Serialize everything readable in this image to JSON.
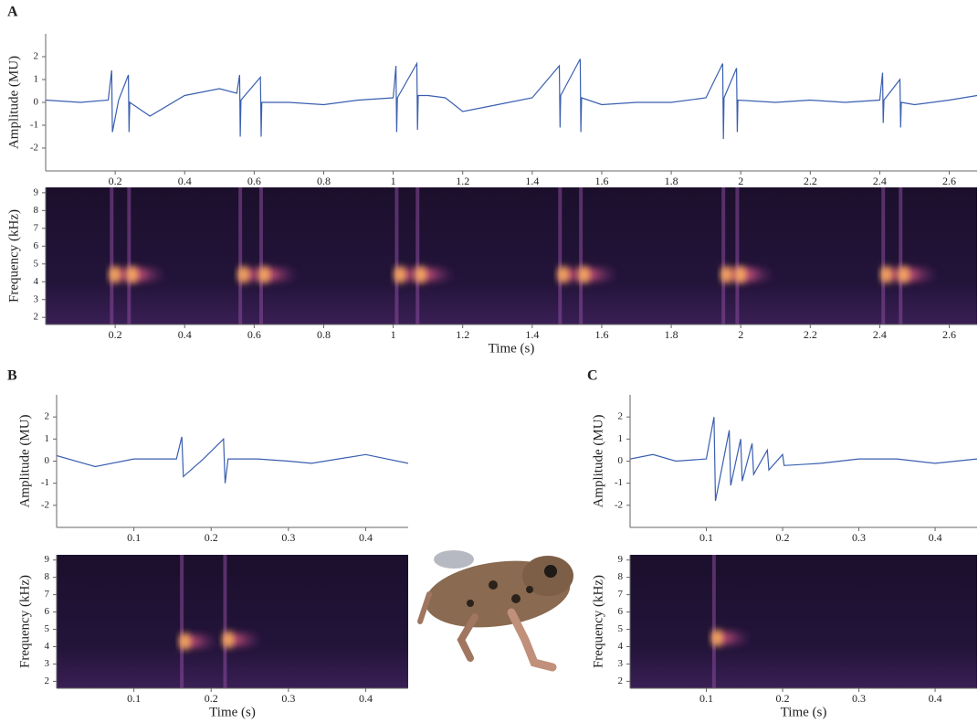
{
  "chart_data": [
    {
      "type": "line",
      "panel": "A",
      "ylabel": "Amplitude (MU)",
      "color": "#3a5fb0",
      "xlim": [
        0,
        2.68
      ],
      "ylim": [
        -3,
        3
      ],
      "xticks": [
        0.2,
        0.4,
        0.6,
        0.8,
        1.0,
        1.2,
        1.4,
        1.6,
        1.8,
        2.0,
        2.2,
        2.4,
        2.6
      ],
      "yticks": [
        -2,
        -1,
        0,
        1,
        2
      ],
      "x": [
        0,
        0.1,
        0.18,
        0.19,
        0.192,
        0.21,
        0.238,
        0.24,
        0.242,
        0.3,
        0.4,
        0.5,
        0.55,
        0.558,
        0.56,
        0.562,
        0.618,
        0.62,
        0.622,
        0.7,
        0.8,
        0.9,
        1.0,
        1.008,
        1.01,
        1.012,
        1.068,
        1.07,
        1.072,
        1.1,
        1.15,
        1.2,
        1.3,
        1.4,
        1.478,
        1.48,
        1.482,
        1.538,
        1.54,
        1.542,
        1.6,
        1.7,
        1.8,
        1.9,
        1.948,
        1.95,
        1.952,
        1.988,
        1.99,
        1.992,
        2.1,
        2.2,
        2.3,
        2.4,
        2.408,
        2.41,
        2.412,
        2.458,
        2.46,
        2.462,
        2.5,
        2.6,
        2.68
      ],
      "values": [
        0.1,
        0.0,
        0.1,
        1.4,
        -1.3,
        0.1,
        1.2,
        -1.3,
        0.0,
        -0.6,
        0.3,
        0.6,
        0.4,
        1.2,
        -1.5,
        0.1,
        1.1,
        -1.5,
        0.0,
        0.0,
        -0.1,
        0.1,
        0.2,
        1.6,
        -1.3,
        0.2,
        1.7,
        -1.2,
        0.3,
        0.3,
        0.2,
        -0.4,
        -0.1,
        0.2,
        1.6,
        -1.1,
        0.3,
        1.9,
        -1.3,
        0.2,
        -0.1,
        0.0,
        0.0,
        0.2,
        1.7,
        -1.6,
        0.2,
        1.5,
        -1.3,
        0.1,
        0.0,
        0.1,
        0.0,
        0.1,
        1.3,
        -0.9,
        0.1,
        1.0,
        -1.1,
        0.0,
        -0.1,
        0.1,
        0.3
      ]
    },
    {
      "type": "spectrogram",
      "ylabel": "Frequency (kHz)",
      "xlabel": "Time (s)",
      "xlim": [
        0,
        2.68
      ],
      "ylim": [
        1.6,
        9.3
      ],
      "xticks": [
        0.2,
        0.4,
        0.6,
        0.8,
        1.0,
        1.2,
        1.4,
        1.6,
        1.8,
        2.0,
        2.2,
        2.4,
        2.6
      ],
      "yticks": [
        2,
        3,
        4,
        5,
        6,
        7,
        8,
        9
      ],
      "x": [
        0.19,
        0.24,
        0.56,
        0.62,
        1.01,
        1.07,
        1.48,
        1.54,
        1.95,
        1.99,
        2.41,
        2.46
      ],
      "values": [
        4.4,
        4.4,
        4.4,
        4.4,
        4.4,
        4.4,
        4.4,
        4.4,
        4.4,
        4.4,
        4.4,
        4.4
      ]
    },
    {
      "type": "line",
      "panel": "B",
      "ylabel": "Amplitude (MU)",
      "color": "#3a5fb0",
      "xlim": [
        0,
        0.455
      ],
      "ylim": [
        -3,
        3
      ],
      "xticks": [
        0.1,
        0.2,
        0.3,
        0.4
      ],
      "yticks": [
        -2,
        -1,
        0,
        1,
        2
      ],
      "x": [
        0,
        0.05,
        0.1,
        0.155,
        0.162,
        0.164,
        0.19,
        0.216,
        0.218,
        0.222,
        0.26,
        0.3,
        0.33,
        0.4,
        0.455
      ],
      "values": [
        0.25,
        -0.25,
        0.1,
        0.1,
        1.1,
        -0.7,
        0.1,
        1.0,
        -1.0,
        0.1,
        0.1,
        0.0,
        -0.1,
        0.3,
        -0.1
      ]
    },
    {
      "type": "spectrogram",
      "ylabel": "Frequency (kHz)",
      "xlabel": "Time (s)",
      "xlim": [
        0,
        0.455
      ],
      "ylim": [
        1.6,
        9.3
      ],
      "xticks": [
        0.1,
        0.2,
        0.3,
        0.4
      ],
      "yticks": [
        2,
        3,
        4,
        5,
        6,
        7,
        8,
        9
      ],
      "x": [
        0.162,
        0.218
      ],
      "values": [
        4.3,
        4.4
      ]
    },
    {
      "type": "line",
      "panel": "C",
      "ylabel": "Amplitude (MU)",
      "color": "#3a5fb0",
      "xlim": [
        0,
        0.455
      ],
      "ylim": [
        -3,
        3
      ],
      "xticks": [
        0.1,
        0.2,
        0.3,
        0.4
      ],
      "yticks": [
        -2,
        -1,
        0,
        1,
        2
      ],
      "x": [
        0,
        0.03,
        0.06,
        0.1,
        0.11,
        0.112,
        0.13,
        0.132,
        0.145,
        0.147,
        0.16,
        0.162,
        0.18,
        0.182,
        0.2,
        0.202,
        0.25,
        0.3,
        0.35,
        0.4,
        0.455
      ],
      "values": [
        0.1,
        0.3,
        0.0,
        0.1,
        2.0,
        -1.8,
        1.4,
        -1.1,
        1.0,
        -0.9,
        0.8,
        -0.6,
        0.5,
        -0.4,
        0.3,
        -0.2,
        -0.1,
        0.1,
        0.1,
        -0.1,
        0.1
      ]
    },
    {
      "type": "spectrogram",
      "ylabel": "Frequency (kHz)",
      "xlabel": "Time (s)",
      "xlim": [
        0,
        0.455
      ],
      "ylim": [
        1.6,
        9.3
      ],
      "xticks": [
        0.1,
        0.2,
        0.3,
        0.4
      ],
      "yticks": [
        2,
        3,
        4,
        5,
        6,
        7,
        8,
        9
      ],
      "x": [
        0.11
      ],
      "values": [
        4.5
      ]
    }
  ]
}
